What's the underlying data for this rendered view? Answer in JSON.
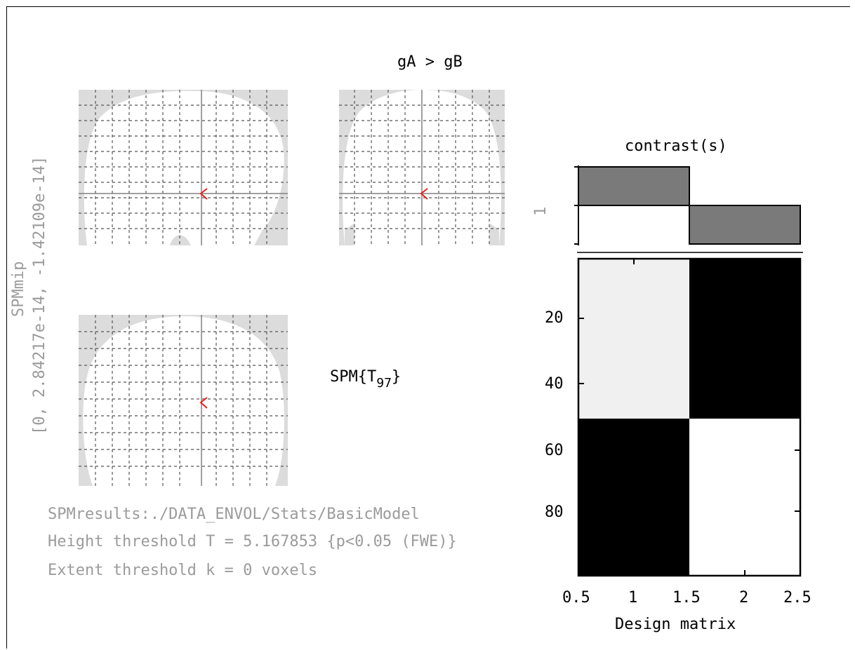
{
  "window": {
    "contrast_name": "gA > gB",
    "stat_prefix": "SPM{T",
    "stat_df": "97",
    "stat_suffix": "}"
  },
  "mip": {
    "side_label": "SPMmip",
    "range_label": "[0, 2.84217e-14, -1.42109e-14]",
    "marker_color": "#e8201a",
    "background_color": "#dcdcdc"
  },
  "results_text": {
    "line1": "SPMresults:./DATA_ENVOL/Stats/BasicModel",
    "line2": "Height threshold T = 5.167853  {p<0.05 (FWE)}",
    "line3": "Extent threshold k = 0 voxels"
  },
  "contrast_plot": {
    "title": "contrast(s)",
    "ytick": "1",
    "weights": [
      1,
      -1
    ],
    "bar_color": "#7a7a7a"
  },
  "chart_data": {
    "type": "heatmap",
    "xlabel": "Design matrix",
    "x_ticks": [
      "0.5",
      "1",
      "1.5",
      "2",
      "2.5"
    ],
    "y_ticks": [
      "20",
      "40",
      "60",
      "80"
    ],
    "xlim": [
      0.5,
      2.5
    ],
    "ylim": [
      0,
      98
    ],
    "columns": [
      {
        "column": 1,
        "rows_1_50": "light",
        "rows_51_98": "black"
      },
      {
        "column": 2,
        "rows_1_50": "black",
        "rows_51_98": "white"
      }
    ]
  }
}
